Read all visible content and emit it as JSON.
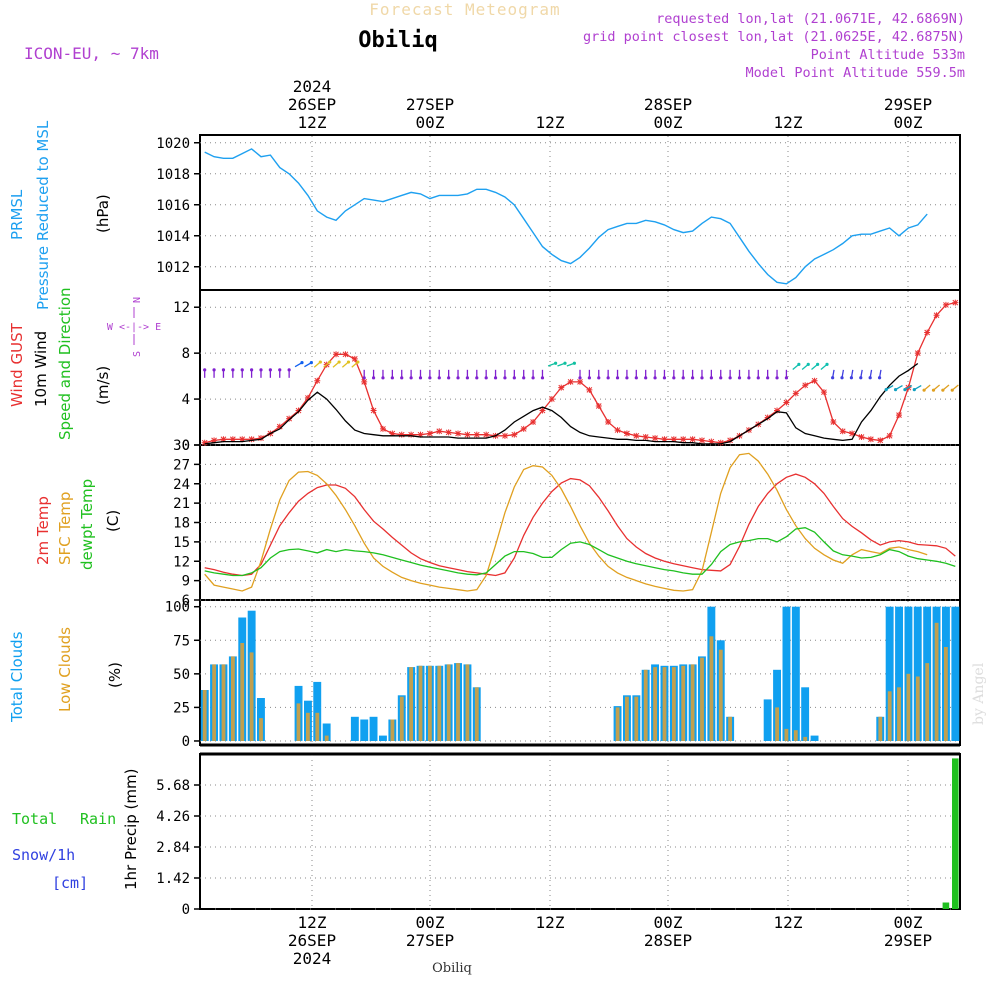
{
  "header": {
    "title_faint": "Forecast Meteogram",
    "station": "Obiliq",
    "model": "ICON-EU, ~ 7km",
    "requested": "requested lon,lat (21.0671E, 42.6869N)",
    "grid": "grid point closest lon,lat (21.0625E, 42.6875N)",
    "alt": "Point Altitude 533m",
    "model_alt": "Model Point Altitude 559.5m"
  },
  "footer": {
    "station": "Obiliq",
    "credit": "by Angel"
  },
  "colors": {
    "pressure": "#1ea0f0",
    "gust": "#e83030",
    "wind": "#000000",
    "temp": "#e83030",
    "sfc": "#e0a020",
    "dewpt": "#20c020",
    "total_cloud": "#10a0f0",
    "low_cloud": "#c0a050",
    "rain": "#20c020",
    "magenta": "#b040d0",
    "blue_text": "#3040e0"
  },
  "chart_data": [
    {
      "id": "pressure",
      "type": "line",
      "ylabels": [
        "PRMSL",
        "Pressure Reduced to MSL",
        "(hPa)"
      ],
      "ylim": [
        1010.5,
        1020.5
      ],
      "yticks": [
        1012,
        1014,
        1016,
        1018,
        1020
      ],
      "series": [
        {
          "name": "PRMSL",
          "values": [
            1019.4,
            1019.1,
            1019.0,
            1019.0,
            1019.3,
            1019.6,
            1019.1,
            1019.2,
            1018.4,
            1018.0,
            1017.4,
            1016.6,
            1015.6,
            1015.2,
            1015.0,
            1015.6,
            1016.0,
            1016.4,
            1016.3,
            1016.2,
            1016.4,
            1016.6,
            1016.8,
            1016.7,
            1016.4,
            1016.6,
            1016.6,
            1016.6,
            1016.7,
            1017.0,
            1017.0,
            1016.8,
            1016.5,
            1016.0,
            1015.1,
            1014.2,
            1013.3,
            1012.8,
            1012.4,
            1012.2,
            1012.6,
            1013.2,
            1013.9,
            1014.4,
            1014.6,
            1014.8,
            1014.8,
            1015.0,
            1014.9,
            1014.7,
            1014.4,
            1014.2,
            1014.3,
            1014.8,
            1015.2,
            1015.1,
            1014.8,
            1013.9,
            1013.0,
            1012.2,
            1011.5,
            1011.0,
            1010.9,
            1011.3,
            1012.0,
            1012.5,
            1012.8,
            1013.1,
            1013.5,
            1014.0,
            1014.1,
            1014.1,
            1014.3,
            1014.5,
            1014.0,
            1014.5,
            1014.7,
            1015.4
          ]
        }
      ]
    },
    {
      "id": "wind",
      "type": "line",
      "ylabels": [
        "Wind GUST",
        "10m Wind",
        "Speed and Direction",
        "(m/s)"
      ],
      "compass": [
        "N",
        "W <-|-> E",
        "S"
      ],
      "ylim": [
        0,
        13.5
      ],
      "yticks": [
        0,
        4,
        8,
        12
      ],
      "series": [
        {
          "name": "Wind GUST",
          "values": [
            0.2,
            0.4,
            0.5,
            0.5,
            0.5,
            0.5,
            0.6,
            1.0,
            1.6,
            2.3,
            3.0,
            4.1,
            5.6,
            7.0,
            7.9,
            7.9,
            7.5,
            5.5,
            3.0,
            1.4,
            1.0,
            0.9,
            0.9,
            0.9,
            1.0,
            1.2,
            1.1,
            1.0,
            0.9,
            0.9,
            0.9,
            0.8,
            0.8,
            0.9,
            1.4,
            2.0,
            3.0,
            4.0,
            5.0,
            5.5,
            5.5,
            4.8,
            3.4,
            2.0,
            1.3,
            1.0,
            0.8,
            0.7,
            0.6,
            0.5,
            0.5,
            0.5,
            0.5,
            0.4,
            0.3,
            0.2,
            0.4,
            0.8,
            1.3,
            1.8,
            2.4,
            3.0,
            3.7,
            4.5,
            5.2,
            5.6,
            4.6,
            2.0,
            1.2,
            1.0,
            0.7,
            0.5,
            0.4,
            0.8,
            2.6,
            5.0,
            8.0,
            9.8,
            11.3,
            12.2,
            12.4
          ]
        },
        {
          "name": "10m Wind",
          "values": [
            0.1,
            0.2,
            0.3,
            0.3,
            0.3,
            0.4,
            0.5,
            1.0,
            1.4,
            2.2,
            2.9,
            3.9,
            4.6,
            4.0,
            3.1,
            2.1,
            1.3,
            1.0,
            0.9,
            0.8,
            0.8,
            0.8,
            0.8,
            0.7,
            0.7,
            0.7,
            0.7,
            0.6,
            0.6,
            0.6,
            0.6,
            0.8,
            1.3,
            2.0,
            2.5,
            3.0,
            3.3,
            3.0,
            2.4,
            1.6,
            1.1,
            0.8,
            0.7,
            0.6,
            0.5,
            0.5,
            0.4,
            0.4,
            0.3,
            0.3,
            0.3,
            0.2,
            0.2,
            0.1,
            0.1,
            0.1,
            0.3,
            0.8,
            1.3,
            1.8,
            2.3,
            2.9,
            2.8,
            1.5,
            1.0,
            0.8,
            0.6,
            0.5,
            0.4,
            0.5,
            2.0,
            3.0,
            4.2,
            5.2,
            6.0,
            6.5,
            7.1
          ]
        }
      ]
    },
    {
      "id": "temp",
      "type": "line",
      "ylabels": [
        "2m Temp",
        "SFC Temp",
        "dewpt Temp",
        "(C)"
      ],
      "ylim": [
        6,
        30
      ],
      "yticks": [
        6,
        9,
        12,
        15,
        18,
        21,
        24,
        27,
        30
      ],
      "series": [
        {
          "name": "2m Temp",
          "values": [
            11.0,
            10.7,
            10.3,
            10.0,
            9.8,
            10.0,
            11.5,
            14.5,
            17.5,
            19.5,
            21.3,
            22.5,
            23.4,
            23.8,
            23.8,
            23.3,
            22.0,
            20.0,
            18.2,
            17.0,
            15.7,
            14.5,
            13.3,
            12.4,
            11.8,
            11.3,
            11.0,
            10.7,
            10.4,
            10.2,
            10.0,
            9.8,
            10.2,
            12.5,
            16.0,
            18.8,
            21.0,
            22.8,
            24.1,
            24.8,
            24.6,
            23.7,
            21.9,
            19.8,
            17.5,
            15.5,
            14.2,
            13.2,
            12.5,
            12.0,
            11.6,
            11.3,
            11.0,
            10.7,
            10.6,
            10.5,
            11.5,
            14.3,
            17.7,
            20.5,
            22.5,
            24.0,
            25.0,
            25.5,
            25.0,
            24.0,
            22.5,
            20.5,
            18.6,
            17.4,
            16.4,
            15.3,
            14.5,
            15.0,
            15.2,
            15.0,
            14.6,
            14.5,
            14.4,
            14.0,
            12.8
          ]
        },
        {
          "name": "SFC Temp",
          "values": [
            10.0,
            8.3,
            8.0,
            7.7,
            7.4,
            8.0,
            12.0,
            17.0,
            21.5,
            24.5,
            25.8,
            25.9,
            25.3,
            24.0,
            22.2,
            20.0,
            17.5,
            14.8,
            12.5,
            11.2,
            10.3,
            9.5,
            9.0,
            8.6,
            8.3,
            8.0,
            7.8,
            7.6,
            7.4,
            7.6,
            9.8,
            14.5,
            19.5,
            23.5,
            26.2,
            26.8,
            26.6,
            25.3,
            23.2,
            20.5,
            17.5,
            14.8,
            12.8,
            11.2,
            10.2,
            9.5,
            9.0,
            8.5,
            8.1,
            7.8,
            7.5,
            7.4,
            7.6,
            10.5,
            16.5,
            22.5,
            26.5,
            28.5,
            28.7,
            27.5,
            25.5,
            23.0,
            20.0,
            17.5,
            15.5,
            14.0,
            13.0,
            12.2,
            11.7,
            13.0,
            13.8,
            13.5,
            13.2,
            14.0,
            14.2,
            13.8,
            13.5,
            13.0
          ]
        },
        {
          "name": "dewpt Temp",
          "values": [
            10.5,
            10.2,
            10.0,
            9.8,
            9.8,
            10.2,
            11.0,
            12.5,
            13.5,
            13.8,
            13.9,
            13.6,
            13.3,
            13.8,
            13.5,
            13.8,
            13.6,
            13.5,
            13.3,
            13.0,
            12.6,
            12.2,
            11.8,
            11.4,
            11.1,
            10.8,
            10.5,
            10.2,
            10.0,
            9.9,
            10.2,
            11.5,
            12.8,
            13.5,
            13.5,
            13.2,
            12.6,
            12.6,
            13.8,
            14.8,
            15.0,
            14.6,
            13.8,
            13.0,
            12.5,
            12.0,
            11.6,
            11.3,
            11.0,
            10.7,
            10.5,
            10.2,
            10.0,
            10.0,
            11.5,
            13.5,
            14.6,
            15.0,
            15.2,
            15.5,
            15.5,
            15.0,
            15.8,
            17.0,
            17.2,
            16.5,
            15.0,
            13.6,
            13.0,
            12.8,
            12.5,
            12.6,
            13.0,
            13.8,
            13.5,
            12.8,
            12.4,
            12.2,
            12.0,
            11.7,
            11.2
          ]
        }
      ]
    },
    {
      "id": "clouds",
      "type": "bar",
      "ylabels": [
        "Total Clouds",
        "Low Clouds",
        "(%)"
      ],
      "ylim": [
        -3,
        105
      ],
      "yticks": [
        0,
        25,
        50,
        75,
        100
      ],
      "series": [
        {
          "name": "Total Clouds",
          "values": [
            38,
            57,
            57,
            63,
            92,
            97,
            32,
            0,
            0,
            0,
            41,
            30,
            44,
            13,
            0,
            0,
            18,
            16,
            18,
            4,
            16,
            34,
            55,
            56,
            56,
            56,
            57,
            58,
            57,
            40,
            0,
            0,
            0,
            0,
            0,
            0,
            0,
            0,
            0,
            0,
            0,
            0,
            0,
            0,
            26,
            34,
            34,
            53,
            57,
            56,
            56,
            57,
            57,
            63,
            100,
            75,
            18,
            0,
            0,
            0,
            31,
            53,
            100,
            100,
            40,
            4,
            0,
            0,
            0,
            0,
            0,
            0,
            18,
            100,
            100,
            100,
            100,
            100,
            100,
            100,
            100
          ]
        },
        {
          "name": "Low Clouds",
          "values": [
            38,
            57,
            57,
            63,
            73,
            66,
            17,
            0,
            0,
            0,
            28,
            21,
            21,
            4,
            0,
            0,
            0,
            0,
            0,
            0,
            16,
            33,
            55,
            56,
            56,
            56,
            57,
            58,
            57,
            40,
            0,
            0,
            0,
            0,
            0,
            0,
            0,
            0,
            0,
            0,
            0,
            0,
            0,
            0,
            25,
            33,
            33,
            53,
            55,
            55,
            55,
            56,
            57,
            62,
            78,
            68,
            18,
            0,
            0,
            0,
            0,
            25,
            9,
            8,
            3,
            0,
            0,
            0,
            0,
            0,
            0,
            0,
            18,
            37,
            40,
            50,
            48,
            58,
            88,
            70
          ]
        }
      ]
    },
    {
      "id": "precip",
      "type": "bar",
      "ylabels": [
        "Total",
        "Rain",
        "Snow/1h",
        "[cm]",
        "1hr Precip (mm)"
      ],
      "ylim": [
        0,
        7.1
      ],
      "yticks": [
        "0",
        "1.42",
        "2.84",
        "4.26",
        "5.68"
      ],
      "series": [
        {
          "name": "1hr Precip",
          "values": [
            0,
            0,
            0,
            0,
            0,
            0,
            0,
            0,
            0,
            0,
            0,
            0,
            0,
            0,
            0,
            0,
            0,
            0,
            0,
            0,
            0,
            0,
            0,
            0,
            0,
            0,
            0,
            0,
            0,
            0,
            0,
            0,
            0,
            0,
            0,
            0,
            0,
            0,
            0,
            0,
            0,
            0,
            0,
            0,
            0,
            0,
            0,
            0,
            0,
            0,
            0,
            0,
            0,
            0,
            0,
            0,
            0,
            0,
            0,
            0,
            0,
            0,
            0,
            0,
            0,
            0,
            0,
            0,
            0,
            0,
            0,
            0,
            0,
            0,
            0,
            0,
            0,
            0,
            0,
            0.3,
            6.9
          ]
        }
      ]
    }
  ],
  "time_axis": {
    "top": [
      {
        "lines": [
          "2024",
          "26SEP",
          "12Z"
        ]
      },
      {
        "lines": [
          "27SEP",
          "00Z"
        ]
      },
      {
        "lines": [
          "12Z"
        ]
      },
      {
        "lines": [
          "28SEP",
          "00Z"
        ]
      },
      {
        "lines": [
          "12Z"
        ]
      },
      {
        "lines": [
          "29SEP",
          "00Z"
        ]
      }
    ],
    "bottom": [
      {
        "lines": [
          "12Z",
          "26SEP",
          "2024"
        ]
      },
      {
        "lines": [
          "00Z",
          "27SEP"
        ]
      },
      {
        "lines": [
          "12Z"
        ]
      },
      {
        "lines": [
          "00Z",
          "28SEP"
        ]
      },
      {
        "lines": [
          "12Z"
        ]
      },
      {
        "lines": [
          "00Z",
          "29SEP"
        ]
      }
    ]
  }
}
